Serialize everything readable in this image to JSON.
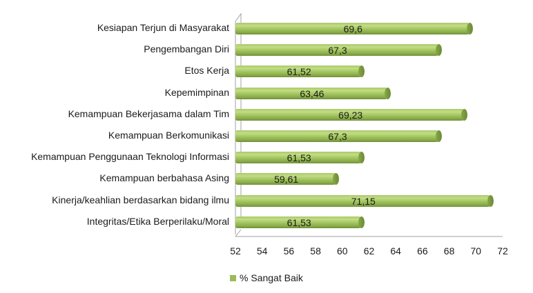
{
  "chart_data": {
    "type": "bar",
    "orientation": "horizontal",
    "style": "3d-cylinder",
    "title": "",
    "xlabel": "",
    "ylabel": "",
    "categories": [
      "Kesiapan Terjun di Masyarakat",
      "Pengembangan Diri",
      "Etos Kerja",
      "Kepemimpinan",
      "Kemampuan Bekerjasama dalam Tim",
      "Kemampuan Berkomunikasi",
      "Kemampuan Penggunaan Teknologi Informasi",
      "Kemampuan berbahasa Asing",
      "Kinerja/keahlian berdasarkan bidang ilmu",
      "Integritas/Etika Berperilaku/Moral"
    ],
    "series": [
      {
        "name": "% Sangat Baik",
        "color": "#9bbb59",
        "values": [
          69.6,
          67.3,
          61.52,
          63.46,
          69.23,
          67.3,
          61.53,
          59.61,
          71.15,
          61.53
        ],
        "labels": [
          "69,6",
          "67,3",
          "61,52",
          "63,46",
          "69,23",
          "67,3",
          "61,53",
          "59,61",
          "71,15",
          "61,53"
        ]
      }
    ],
    "xlim": [
      52,
      72
    ],
    "xticks": [
      "52",
      "54",
      "56",
      "58",
      "60",
      "62",
      "64",
      "66",
      "68",
      "70",
      "72"
    ],
    "grid": false,
    "legend_position": "bottom"
  },
  "legend": {
    "label": "% Sangat Baik",
    "color": "#9bbb59"
  }
}
